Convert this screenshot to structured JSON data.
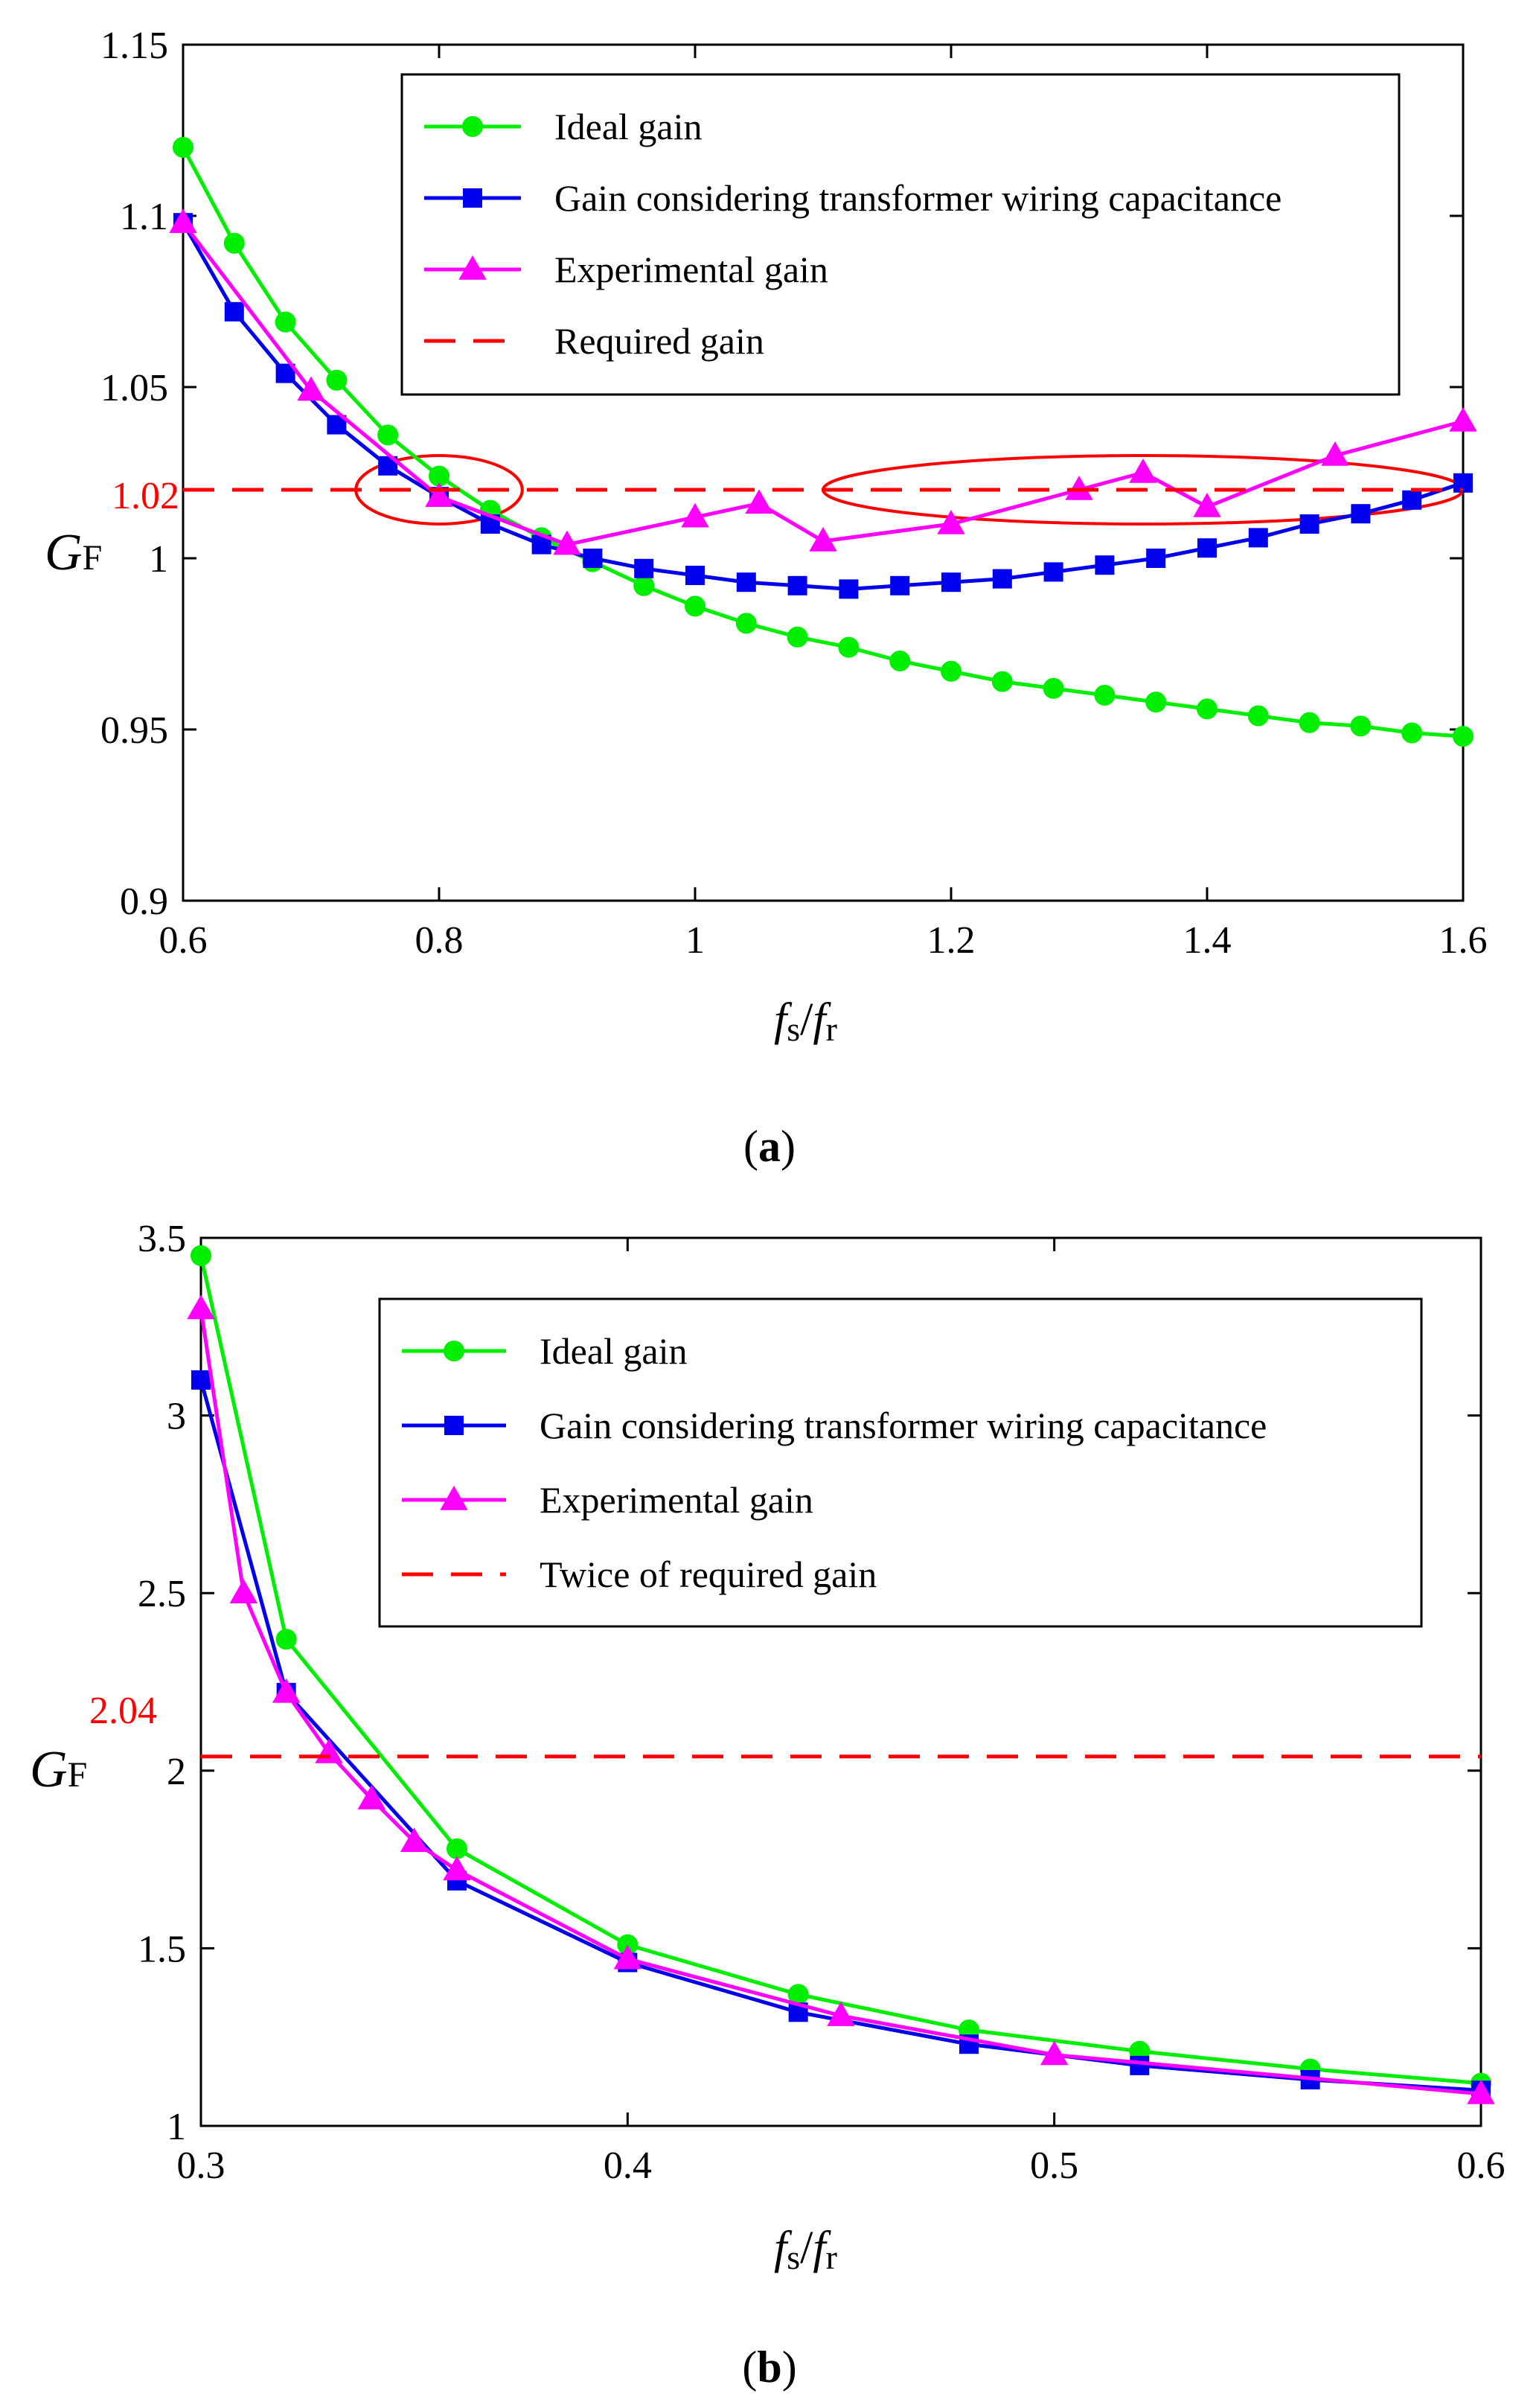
{
  "figure_a": {
    "caption_letter": "a",
    "ref_label": "1.02",
    "ylabel_main": "G",
    "ylabel_sub": "F"
  },
  "figure_b": {
    "caption_letter": "b",
    "ref_label": "2.04",
    "ylabel_main": "G",
    "ylabel_sub": "F"
  },
  "xlabel": {
    "f1": "f",
    "s": "s",
    "slash": "/",
    "f2": "f",
    "r": "r"
  },
  "colors": {
    "ideal": "#00ee00",
    "wiring": "#0000ee",
    "experimental": "#ff00ff",
    "required": "#ff0000"
  },
  "chart_data": [
    {
      "type": "line",
      "id": "a",
      "xlabel": "fs/fr",
      "ylabel": "GF",
      "xlim": [
        0.6,
        1.6
      ],
      "ylim": [
        0.9,
        1.15
      ],
      "xticks": [
        0.6,
        0.8,
        1,
        1.2,
        1.4,
        1.6
      ],
      "xtick_labels": [
        "0.6",
        "0.8",
        "1",
        "1.2",
        "1.4",
        "1.6"
      ],
      "yticks": [
        0.9,
        0.95,
        1,
        1.05,
        1.1,
        1.15
      ],
      "ytick_labels": [
        "0.9",
        "0.95",
        "1",
        "1.05",
        "1.1",
        "1.15"
      ],
      "legend_position": "top-right",
      "series": [
        {
          "name": "Ideal gain",
          "marker": "circle",
          "style": "solid",
          "x": [
            0.6,
            0.64,
            0.68,
            0.72,
            0.76,
            0.8,
            0.84,
            0.88,
            0.92,
            0.96,
            1.0,
            1.04,
            1.08,
            1.12,
            1.16,
            1.2,
            1.24,
            1.28,
            1.32,
            1.36,
            1.4,
            1.44,
            1.48,
            1.52,
            1.56,
            1.6
          ],
          "values": [
            1.12,
            1.092,
            1.069,
            1.052,
            1.036,
            1.024,
            1.014,
            1.006,
            0.999,
            0.992,
            0.986,
            0.981,
            0.977,
            0.974,
            0.97,
            0.967,
            0.964,
            0.962,
            0.96,
            0.958,
            0.956,
            0.954,
            0.952,
            0.951,
            0.949,
            0.948
          ]
        },
        {
          "name": "Gain considering transformer wiring capacitance",
          "marker": "square",
          "style": "solid",
          "x": [
            0.6,
            0.64,
            0.68,
            0.72,
            0.76,
            0.8,
            0.84,
            0.88,
            0.92,
            0.96,
            1.0,
            1.04,
            1.08,
            1.12,
            1.16,
            1.2,
            1.24,
            1.28,
            1.32,
            1.36,
            1.4,
            1.44,
            1.48,
            1.52,
            1.56,
            1.6
          ],
          "values": [
            1.098,
            1.072,
            1.054,
            1.039,
            1.027,
            1.018,
            1.01,
            1.004,
            1.0,
            0.997,
            0.995,
            0.993,
            0.992,
            0.991,
            0.992,
            0.993,
            0.994,
            0.996,
            0.998,
            1.0,
            1.003,
            1.006,
            1.01,
            1.013,
            1.017,
            1.022
          ]
        },
        {
          "name": "Experimental gain",
          "marker": "triangle",
          "style": "solid",
          "x": [
            0.6,
            0.7,
            0.8,
            0.9,
            1.0,
            1.05,
            1.1,
            1.2,
            1.3,
            1.35,
            1.4,
            1.5,
            1.6
          ],
          "values": [
            1.098,
            1.049,
            1.018,
            1.004,
            1.012,
            1.016,
            1.005,
            1.01,
            1.02,
            1.025,
            1.015,
            1.03,
            1.04
          ]
        },
        {
          "name": "Required gain",
          "marker": "none",
          "style": "dashed",
          "x": [
            0.6,
            1.6
          ],
          "values": [
            1.02,
            1.02
          ]
        }
      ],
      "annotations": [
        {
          "type": "ellipse",
          "cx": 0.8,
          "cy": 1.02,
          "rx": 0.065,
          "ry": 0.01
        },
        {
          "type": "ellipse",
          "cx": 1.35,
          "cy": 1.02,
          "rx": 0.25,
          "ry": 0.01
        }
      ]
    },
    {
      "type": "line",
      "id": "b",
      "xlabel": "fs/fr",
      "ylabel": "GF",
      "xlim": [
        0.3,
        0.6
      ],
      "ylim": [
        1,
        3.5
      ],
      "xticks": [
        0.3,
        0.4,
        0.5,
        0.6
      ],
      "xtick_labels": [
        "0.3",
        "0.4",
        "0.5",
        "0.6"
      ],
      "yticks": [
        1,
        1.5,
        2,
        2.5,
        3,
        3.5
      ],
      "ytick_labels": [
        "1",
        "1.5",
        "2",
        "2.5",
        "3",
        "3.5"
      ],
      "legend_position": "top-right",
      "series": [
        {
          "name": "Ideal gain",
          "marker": "circle",
          "style": "solid",
          "x": [
            0.3,
            0.32,
            0.36,
            0.4,
            0.44,
            0.48,
            0.52,
            0.56,
            0.6
          ],
          "values": [
            3.45,
            2.37,
            1.78,
            1.51,
            1.37,
            1.27,
            1.21,
            1.16,
            1.12
          ]
        },
        {
          "name": "Gain considering transformer wiring capacitance",
          "marker": "square",
          "style": "solid",
          "x": [
            0.3,
            0.32,
            0.36,
            0.4,
            0.44,
            0.48,
            0.52,
            0.56,
            0.6
          ],
          "values": [
            3.1,
            2.22,
            1.69,
            1.46,
            1.32,
            1.23,
            1.17,
            1.13,
            1.1
          ]
        },
        {
          "name": "Experimental gain",
          "marker": "triangle",
          "style": "solid",
          "x": [
            0.3,
            0.31,
            0.32,
            0.33,
            0.34,
            0.35,
            0.36,
            0.4,
            0.45,
            0.5,
            0.6
          ],
          "values": [
            3.3,
            2.5,
            2.22,
            2.05,
            1.92,
            1.8,
            1.72,
            1.47,
            1.31,
            1.2,
            1.09
          ]
        },
        {
          "name": "Twice of required gain",
          "marker": "none",
          "style": "dashed",
          "x": [
            0.3,
            0.6
          ],
          "values": [
            2.04,
            2.04
          ]
        }
      ],
      "annotations": []
    }
  ]
}
